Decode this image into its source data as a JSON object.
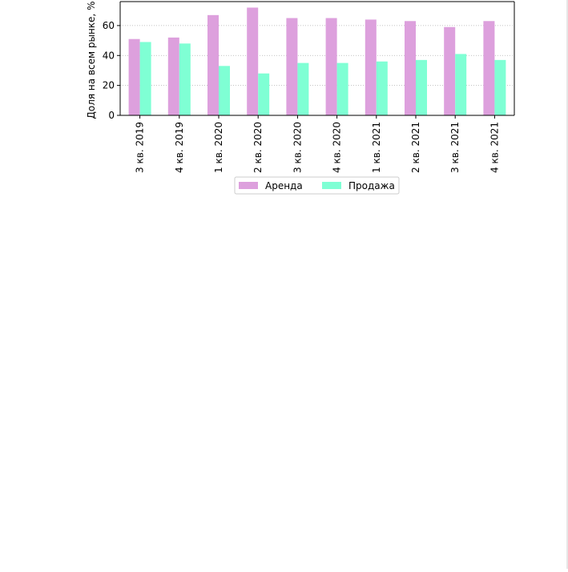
{
  "chart_data": {
    "type": "bar",
    "ylabel": "Доля на всем рынке, %",
    "yticks": [
      0,
      20,
      40,
      60
    ],
    "ylim": [
      0,
      76
    ],
    "grid": true,
    "legend_placement": "bottom-center",
    "categories": [
      "3 кв. 2019",
      "4 кв. 2019",
      "1 кв. 2020",
      "2 кв. 2020",
      "3 кв. 2020",
      "4 кв. 2020",
      "1 кв. 2021",
      "2 кв. 2021",
      "3 кв. 2021",
      "4 кв. 2021"
    ],
    "series": [
      {
        "name": "Аренда",
        "color": "#dda0dd",
        "values": [
          51,
          52,
          67,
          72,
          65,
          65,
          64,
          63,
          59,
          63
        ]
      },
      {
        "name": "Продажа",
        "color": "#7fffd4",
        "values": [
          49,
          48,
          33,
          28,
          35,
          35,
          36,
          37,
          41,
          37
        ]
      }
    ]
  }
}
